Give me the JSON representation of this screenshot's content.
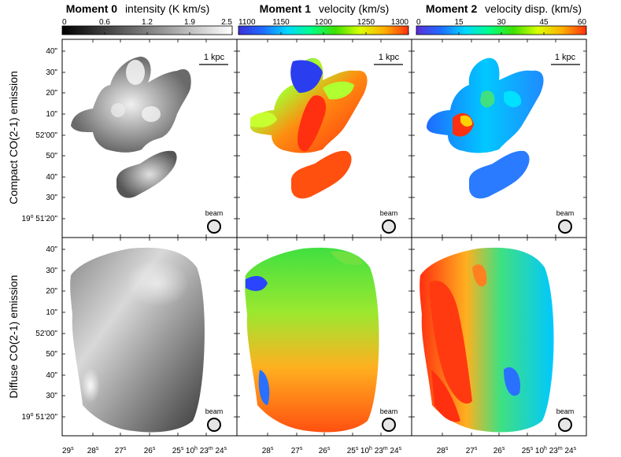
{
  "colorbars": [
    {
      "title_bold": "Moment 0",
      "title_rest": "intensity (K km/s)",
      "ticks": [
        "0",
        "0.6",
        "1.2",
        "1.9",
        "2.5"
      ],
      "colors": [
        "#000000",
        "#ffffff"
      ]
    },
    {
      "title_bold": "Moment 1",
      "title_rest": "velocity (km/s)",
      "ticks": [
        "1100",
        "1150",
        "1200",
        "1250",
        "1300"
      ],
      "colors": [
        "#3b2fd8",
        "#1f6bff",
        "#00d8ff",
        "#00ff88",
        "#40e000",
        "#d8ff00",
        "#ffb000",
        "#ff3010"
      ]
    },
    {
      "title_bold": "Moment 2",
      "title_rest": "velocity disp. (km/s)",
      "ticks": [
        "0",
        "15",
        "30",
        "45",
        "60"
      ],
      "colors": [
        "#5a2fd8",
        "#1f6bff",
        "#00d8ff",
        "#00ff88",
        "#40e000",
        "#d8ff00",
        "#ffb000",
        "#ff3010"
      ]
    }
  ],
  "row_labels": [
    "Compact CO(2-1) emission",
    "Diffuse CO(2-1) emission"
  ],
  "dec_ticks": [
    "40\"",
    "30\"",
    "20\"",
    "10\"",
    "52'00\"",
    "50\"",
    "40\"",
    "30\""
  ],
  "dec_bottom": {
    "main": "19",
    "sup": "o",
    "rest": " 51'20\""
  },
  "ra_ticks_full": [
    "29",
    "28",
    "27",
    "26",
    "25"
  ],
  "ra_ticks_short": [
    "28",
    "27",
    "26",
    "25"
  ],
  "ra_end": {
    "h": "10",
    "m": "23",
    "s": "24"
  },
  "ra_sup": {
    "s": "s",
    "h": "h",
    "m": "m"
  },
  "scale_label": "1 kpc",
  "beam_label": "beam"
}
